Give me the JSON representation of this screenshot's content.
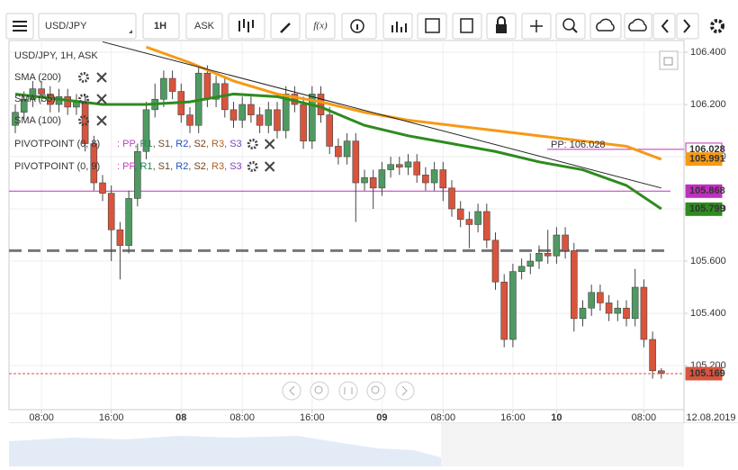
{
  "toolbar": {
    "symbol": "USD/JPY",
    "interval": "1H",
    "side": "ASK",
    "fx": "f(x)"
  },
  "legend": {
    "title": "USD/JPY, 1H, ASK",
    "sma": [
      {
        "name": "SMA (200)",
        "color": "#b22222"
      },
      {
        "name": "SMA (55)",
        "color": "#2e8b1e"
      },
      {
        "name": "SMA (100)",
        "color": "#f59a14"
      }
    ],
    "pivots": [
      "PIVOTPOINT (0, 8)",
      "PIVOTPOINT (0, 9)"
    ],
    "pivot_items": [
      {
        "text": ": PP",
        "color": "#c040c0"
      },
      {
        "text": ", R1",
        "color": "#1f8a5a"
      },
      {
        "text": ", S1",
        "color": "#6b4a2a"
      },
      {
        "text": ", R2",
        "color": "#2050c0"
      },
      {
        "text": ", S2",
        "color": "#7a3a1a"
      },
      {
        "text": ", R3",
        "color": "#b06020"
      },
      {
        "text": ", S3",
        "color": "#8040c0"
      }
    ]
  },
  "chart_data": {
    "type": "candlestick",
    "categories": [
      null,
      null,
      null,
      "08:00",
      null,
      null,
      null,
      null,
      null,
      null,
      null,
      "16:00",
      null,
      null,
      null,
      null,
      null,
      null,
      null,
      "08",
      null,
      null,
      null,
      null,
      null,
      null,
      "08:00",
      null,
      null,
      null,
      null,
      null,
      null,
      null,
      "16:00",
      null,
      null,
      null,
      null,
      null,
      null,
      null,
      "09",
      null,
      null,
      null,
      null,
      null,
      null,
      "08:00",
      null,
      null,
      null,
      null,
      null,
      null,
      null,
      "16:00",
      null,
      null,
      null,
      null,
      "10",
      null,
      null,
      null,
      null,
      null,
      null,
      null,
      null,
      null,
      "08:00",
      null,
      null
    ],
    "date_label": "12.08.2019",
    "colors": {
      "up": "#4f9a62",
      "down": "#d9543c"
    },
    "ohlc": [
      [
        106.12,
        106.2,
        106.09,
        106.17
      ],
      [
        106.17,
        106.25,
        106.14,
        106.22
      ],
      [
        106.22,
        106.29,
        106.19,
        106.26
      ],
      [
        106.26,
        106.29,
        106.21,
        106.24
      ],
      [
        106.24,
        106.27,
        106.17,
        106.2
      ],
      [
        106.2,
        106.26,
        106.17,
        106.23
      ],
      [
        106.23,
        106.26,
        106.16,
        106.19
      ],
      [
        106.19,
        106.24,
        106.16,
        106.21
      ],
      [
        106.21,
        106.24,
        106.02,
        106.05
      ],
      [
        106.05,
        106.08,
        105.87,
        105.9
      ],
      [
        105.9,
        105.93,
        105.83,
        105.86
      ],
      [
        105.86,
        105.89,
        105.6,
        105.72
      ],
      [
        105.72,
        105.75,
        105.53,
        105.66
      ],
      [
        105.66,
        105.87,
        105.63,
        105.84
      ],
      [
        105.84,
        106.05,
        105.81,
        106.02
      ],
      [
        106.02,
        106.21,
        105.99,
        106.18
      ],
      [
        106.18,
        106.28,
        106.15,
        106.22
      ],
      [
        106.22,
        106.33,
        106.19,
        106.3
      ],
      [
        106.3,
        106.33,
        106.22,
        106.25
      ],
      [
        106.25,
        106.28,
        106.13,
        106.16
      ],
      [
        106.16,
        106.19,
        106.09,
        106.12
      ],
      [
        106.12,
        106.35,
        106.09,
        106.32
      ],
      [
        106.32,
        106.35,
        106.19,
        106.22
      ],
      [
        106.22,
        106.31,
        106.19,
        106.28
      ],
      [
        106.28,
        106.31,
        106.15,
        106.18
      ],
      [
        106.18,
        106.21,
        106.11,
        106.14
      ],
      [
        106.14,
        106.23,
        106.11,
        106.2
      ],
      [
        106.2,
        106.23,
        106.13,
        106.16
      ],
      [
        106.16,
        106.19,
        106.09,
        106.12
      ],
      [
        106.12,
        106.21,
        106.09,
        106.18
      ],
      [
        106.18,
        106.21,
        106.07,
        106.1
      ],
      [
        106.1,
        106.27,
        106.07,
        106.24
      ],
      [
        106.24,
        106.27,
        106.17,
        106.2
      ],
      [
        106.2,
        106.23,
        106.03,
        106.06
      ],
      [
        106.06,
        106.27,
        106.03,
        106.24
      ],
      [
        106.24,
        106.27,
        106.13,
        106.16
      ],
      [
        106.16,
        106.19,
        106.01,
        106.04
      ],
      [
        106.04,
        106.07,
        105.97,
        106.0
      ],
      [
        106.0,
        106.09,
        105.97,
        106.06
      ],
      [
        106.06,
        106.09,
        105.75,
        105.9
      ],
      [
        105.9,
        105.95,
        105.87,
        105.92
      ],
      [
        105.92,
        105.95,
        105.8,
        105.88
      ],
      [
        105.88,
        105.98,
        105.85,
        105.95
      ],
      [
        105.95,
        106.0,
        105.92,
        105.97
      ],
      [
        105.97,
        106.0,
        105.93,
        105.96
      ],
      [
        105.96,
        106.01,
        105.93,
        105.98
      ],
      [
        105.98,
        106.01,
        105.9,
        105.93
      ],
      [
        105.93,
        105.96,
        105.87,
        105.9
      ],
      [
        105.9,
        105.98,
        105.87,
        105.95
      ],
      [
        105.95,
        105.98,
        105.83,
        105.88
      ],
      [
        105.88,
        105.91,
        105.77,
        105.8
      ],
      [
        105.8,
        105.83,
        105.73,
        105.76
      ],
      [
        105.76,
        105.79,
        105.65,
        105.74
      ],
      [
        105.74,
        105.82,
        105.71,
        105.79
      ],
      [
        105.79,
        105.82,
        105.65,
        105.68
      ],
      [
        105.68,
        105.71,
        105.49,
        105.52
      ],
      [
        105.52,
        105.55,
        105.27,
        105.3
      ],
      [
        105.3,
        105.59,
        105.27,
        105.56
      ],
      [
        105.56,
        105.61,
        105.53,
        105.58
      ],
      [
        105.58,
        105.63,
        105.55,
        105.6
      ],
      [
        105.6,
        105.66,
        105.57,
        105.63
      ],
      [
        105.63,
        105.72,
        105.59,
        105.62
      ],
      [
        105.62,
        105.73,
        105.59,
        105.7
      ],
      [
        105.7,
        105.73,
        105.61,
        105.64
      ],
      [
        105.64,
        105.67,
        105.33,
        105.38
      ],
      [
        105.38,
        105.45,
        105.35,
        105.42
      ],
      [
        105.42,
        105.51,
        105.39,
        105.48
      ],
      [
        105.48,
        105.51,
        105.41,
        105.44
      ],
      [
        105.44,
        105.47,
        105.37,
        105.4
      ],
      [
        105.4,
        105.45,
        105.37,
        105.42
      ],
      [
        105.42,
        105.45,
        105.35,
        105.38
      ],
      [
        105.38,
        105.57,
        105.35,
        105.5
      ],
      [
        105.5,
        105.53,
        105.27,
        105.3
      ],
      [
        105.3,
        105.33,
        105.15,
        105.18
      ],
      [
        105.18,
        105.19,
        105.15,
        105.17
      ]
    ],
    "sma": [
      {
        "color": "#2e8b1e",
        "x": [
          0,
          5,
          10,
          15,
          20,
          25,
          30,
          35,
          40,
          45,
          50,
          55,
          60,
          65,
          70,
          74
        ],
        "values": [
          106.24,
          106.22,
          106.2,
          106.2,
          106.21,
          106.24,
          106.23,
          106.19,
          106.12,
          106.08,
          106.05,
          106.02,
          105.98,
          105.95,
          105.89,
          105.8
        ]
      },
      {
        "color": "#f59a14",
        "x": [
          15,
          20,
          25,
          30,
          35,
          40,
          45,
          50,
          55,
          60,
          65,
          70,
          74
        ],
        "values": [
          106.42,
          106.36,
          106.29,
          106.24,
          106.21,
          106.17,
          106.14,
          106.12,
          106.1,
          106.08,
          106.06,
          106.04,
          105.99
        ]
      }
    ],
    "trendline": {
      "color": "#222222",
      "x": [
        10,
        74
      ],
      "values": [
        106.44,
        105.88
      ]
    },
    "levels": [
      {
        "value": 105.64,
        "color": "#777777",
        "dashed": true
      },
      {
        "value": 105.868,
        "color": "#c030c0",
        "dashed": false
      }
    ],
    "pp_label": "PP: 106.028",
    "price_labels": [
      {
        "value": 106.028,
        "color": "#c030c0",
        "outline": true
      },
      {
        "value": 105.991,
        "color": "#f59a14",
        "outline": false
      },
      {
        "value": 105.868,
        "color": "#c030c0",
        "outline": false
      },
      {
        "value": 105.799,
        "color": "#2e8b1e",
        "outline": false
      },
      {
        "value": 105.169,
        "color": "#d9543c",
        "outline": false
      }
    ],
    "ylim": [
      105.031,
      106.445
    ],
    "yticks": [
      {
        "value": 105.2,
        "label": "105.200"
      },
      {
        "value": 105.4,
        "label": "105.400"
      },
      {
        "value": 105.6,
        "label": "105.600"
      },
      {
        "value": 105.8,
        "label": "105.800"
      },
      {
        "value": 106.0,
        "label": "106.000"
      },
      {
        "value": 106.2,
        "label": "106.200"
      },
      {
        "value": 106.4,
        "label": "106.400"
      }
    ],
    "grid": true
  }
}
